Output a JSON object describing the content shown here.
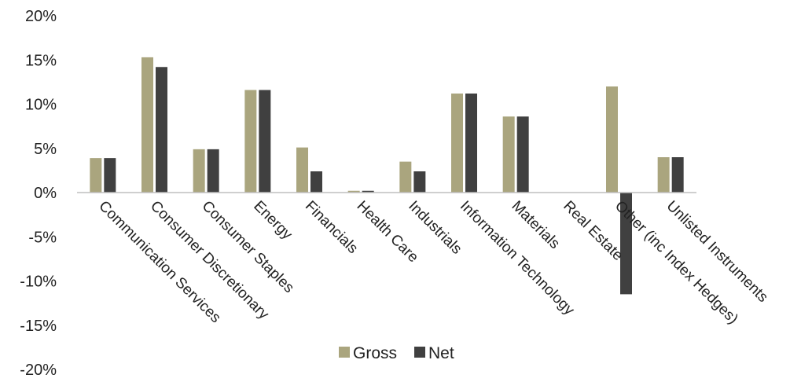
{
  "chart_data": {
    "type": "bar",
    "categories": [
      "Communication Services",
      "Consumer Discretionary",
      "Consumer Staples",
      "Energy",
      "Financials",
      "Health Care",
      "Industrials",
      "Information Technology",
      "Materials",
      "Real Estate",
      "Other (inc Index Hedges)",
      "Unlisted Instruments"
    ],
    "series": [
      {
        "name": "Gross",
        "color": "#aaa57e",
        "values": [
          3.9,
          15.3,
          4.9,
          11.6,
          5.1,
          0.2,
          3.5,
          11.2,
          8.6,
          0.0,
          12.0,
          4.0
        ]
      },
      {
        "name": "Net",
        "color": "#404040",
        "values": [
          3.9,
          14.2,
          4.9,
          11.6,
          2.4,
          0.2,
          2.4,
          11.2,
          8.6,
          0.0,
          -11.5,
          4.0
        ]
      }
    ],
    "yticks": [
      "20%",
      "15%",
      "10%",
      "5%",
      "0%",
      "-5%",
      "-10%",
      "-15%",
      "-20%"
    ],
    "ylim": [
      -20,
      20
    ],
    "legend": "bottom-center",
    "grid": false
  }
}
